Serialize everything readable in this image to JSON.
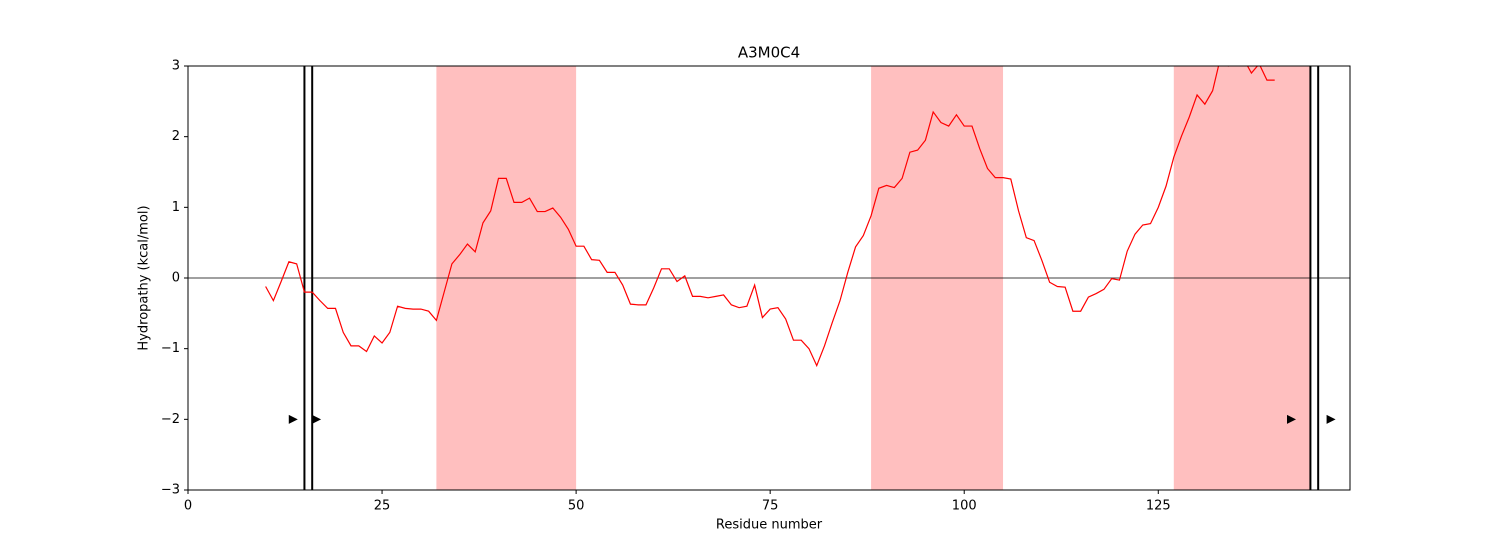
{
  "chart_data": {
    "type": "line",
    "title": "A3M0C4",
    "xlabel": "Residue number",
    "ylabel": "Hydropathy (kcal/mol)",
    "x": [
      10,
      11,
      12,
      13,
      14,
      15,
      16,
      17,
      18,
      19,
      20,
      21,
      22,
      23,
      24,
      25,
      26,
      27,
      28,
      29,
      30,
      31,
      32,
      33,
      34,
      35,
      36,
      37,
      38,
      39,
      40,
      41,
      42,
      43,
      44,
      45,
      46,
      47,
      48,
      49,
      50,
      51,
      52,
      53,
      54,
      55,
      56,
      57,
      58,
      59,
      60,
      61,
      62,
      63,
      64,
      65,
      66,
      67,
      68,
      69,
      70,
      71,
      72,
      73,
      74,
      75,
      76,
      77,
      78,
      79,
      80,
      81,
      82,
      83,
      84,
      85,
      86,
      87,
      88,
      89,
      90,
      91,
      92,
      93,
      94,
      95,
      96,
      97,
      98,
      99,
      100,
      101,
      102,
      103,
      104,
      105,
      106,
      107,
      108,
      109,
      110,
      111,
      112,
      113,
      114,
      115,
      116,
      117,
      118,
      119,
      120,
      121,
      122,
      123,
      124,
      125,
      126,
      127,
      128,
      129,
      130,
      131,
      132,
      133,
      134,
      135,
      136,
      137,
      138,
      139,
      140
    ],
    "series": [
      {
        "color": "#ff0000",
        "values": [
          -0.12,
          -0.32,
          -0.05,
          0.23,
          0.2,
          -0.2,
          -0.2,
          -0.32,
          -0.43,
          -0.43,
          -0.77,
          -0.96,
          -0.96,
          -1.04,
          -0.82,
          -0.92,
          -0.77,
          -0.4,
          -0.43,
          -0.44,
          -0.44,
          -0.47,
          -0.6,
          -0.2,
          0.2,
          0.33,
          0.48,
          0.37,
          0.78,
          0.95,
          1.41,
          1.41,
          1.07,
          1.07,
          1.13,
          0.94,
          0.94,
          0.99,
          0.86,
          0.69,
          0.45,
          0.45,
          0.26,
          0.25,
          0.08,
          0.08,
          -0.1,
          -0.37,
          -0.38,
          -0.38,
          -0.14,
          0.13,
          0.13,
          -0.05,
          0.03,
          -0.26,
          -0.26,
          -0.28,
          -0.26,
          -0.24,
          -0.38,
          -0.42,
          -0.4,
          -0.1,
          -0.56,
          -0.44,
          -0.42,
          -0.58,
          -0.88,
          -0.88,
          -1.0,
          -1.24,
          -0.96,
          -0.63,
          -0.32,
          0.08,
          0.44,
          0.6,
          0.88,
          1.27,
          1.31,
          1.28,
          1.41,
          1.78,
          1.81,
          1.95,
          2.35,
          2.2,
          2.15,
          2.31,
          2.15,
          2.15,
          1.83,
          1.55,
          1.42,
          1.42,
          1.4,
          0.95,
          0.57,
          0.53,
          0.25,
          -0.06,
          -0.12,
          -0.13,
          -0.47,
          -0.47,
          -0.27,
          -0.22,
          -0.16,
          -0.01,
          -0.03,
          0.38,
          0.62,
          0.75,
          0.77,
          1.0,
          1.3,
          1.71,
          2.01,
          2.28,
          2.59,
          2.46,
          2.65,
          3.11,
          3.0,
          3.15,
          3.1,
          2.9,
          3.03,
          2.8,
          2.8
        ]
      }
    ],
    "spans": [
      [
        32,
        50
      ],
      [
        88,
        105
      ],
      [
        127,
        144.6
      ]
    ],
    "span_color": "#ffbfbf",
    "vlines": [
      15,
      16,
      144.6,
      145.6
    ],
    "vline_color": "#000000",
    "hline": 0,
    "markers": {
      "x": [
        13.5,
        16.5,
        142.1,
        147.2
      ],
      "y": [
        -2,
        -2,
        -2,
        -2
      ],
      "color": "#000000"
    },
    "xlim": [
      0,
      149.7
    ],
    "ylim": [
      -3,
      3
    ],
    "xticks": [
      0,
      25,
      50,
      75,
      100,
      125
    ],
    "yticks": [
      {
        "value": -3,
        "label": "−3"
      },
      {
        "value": -2,
        "label": "−2"
      },
      {
        "value": -1,
        "label": "−1"
      },
      0,
      1,
      2,
      3
    ]
  }
}
